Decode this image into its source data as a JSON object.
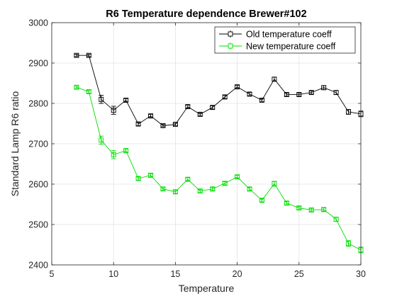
{
  "chart_data": {
    "type": "line",
    "title": "R6 Temperature dependence Brewer#102",
    "xlabel": "Temperature",
    "ylabel": "Standard Lamp R6 ratio",
    "xlim": [
      5,
      30
    ],
    "ylim": [
      2400,
      3000
    ],
    "xticks": [
      5,
      10,
      15,
      20,
      25,
      30
    ],
    "yticks": [
      2400,
      2500,
      2600,
      2700,
      2800,
      2900,
      3000
    ],
    "grid": true,
    "legend_position": "top-right",
    "x": [
      7,
      8,
      9,
      10,
      11,
      12,
      13,
      14,
      15,
      16,
      17,
      18,
      19,
      20,
      21,
      22,
      23,
      24,
      25,
      26,
      27,
      28,
      29,
      30
    ],
    "series": [
      {
        "name": "Old temperature coeff",
        "color": "#000000",
        "values": [
          2919,
          2919,
          2810,
          2783,
          2808,
          2749,
          2769,
          2745,
          2748,
          2792,
          2773,
          2790,
          2816,
          2841,
          2823,
          2808,
          2860,
          2822,
          2822,
          2827,
          2839,
          2827,
          2779,
          2774
        ],
        "errors": [
          3,
          3,
          10,
          10,
          4,
          4,
          4,
          3,
          3,
          4,
          4,
          4,
          4,
          4,
          4,
          4,
          5,
          4,
          4,
          4,
          5,
          5,
          6,
          7
        ]
      },
      {
        "name": "New temperature coeff",
        "color": "#00dd00",
        "values": [
          2840,
          2829,
          2709,
          2673,
          2683,
          2614,
          2622,
          2588,
          2581,
          2612,
          2583,
          2588,
          2602,
          2618,
          2588,
          2560,
          2601,
          2553,
          2541,
          2536,
          2537,
          2513,
          2453,
          2437
        ],
        "errors": [
          3,
          4,
          10,
          10,
          4,
          4,
          4,
          3,
          4,
          4,
          4,
          4,
          4,
          4,
          4,
          4,
          6,
          4,
          4,
          4,
          4,
          5,
          7,
          7
        ]
      }
    ]
  }
}
